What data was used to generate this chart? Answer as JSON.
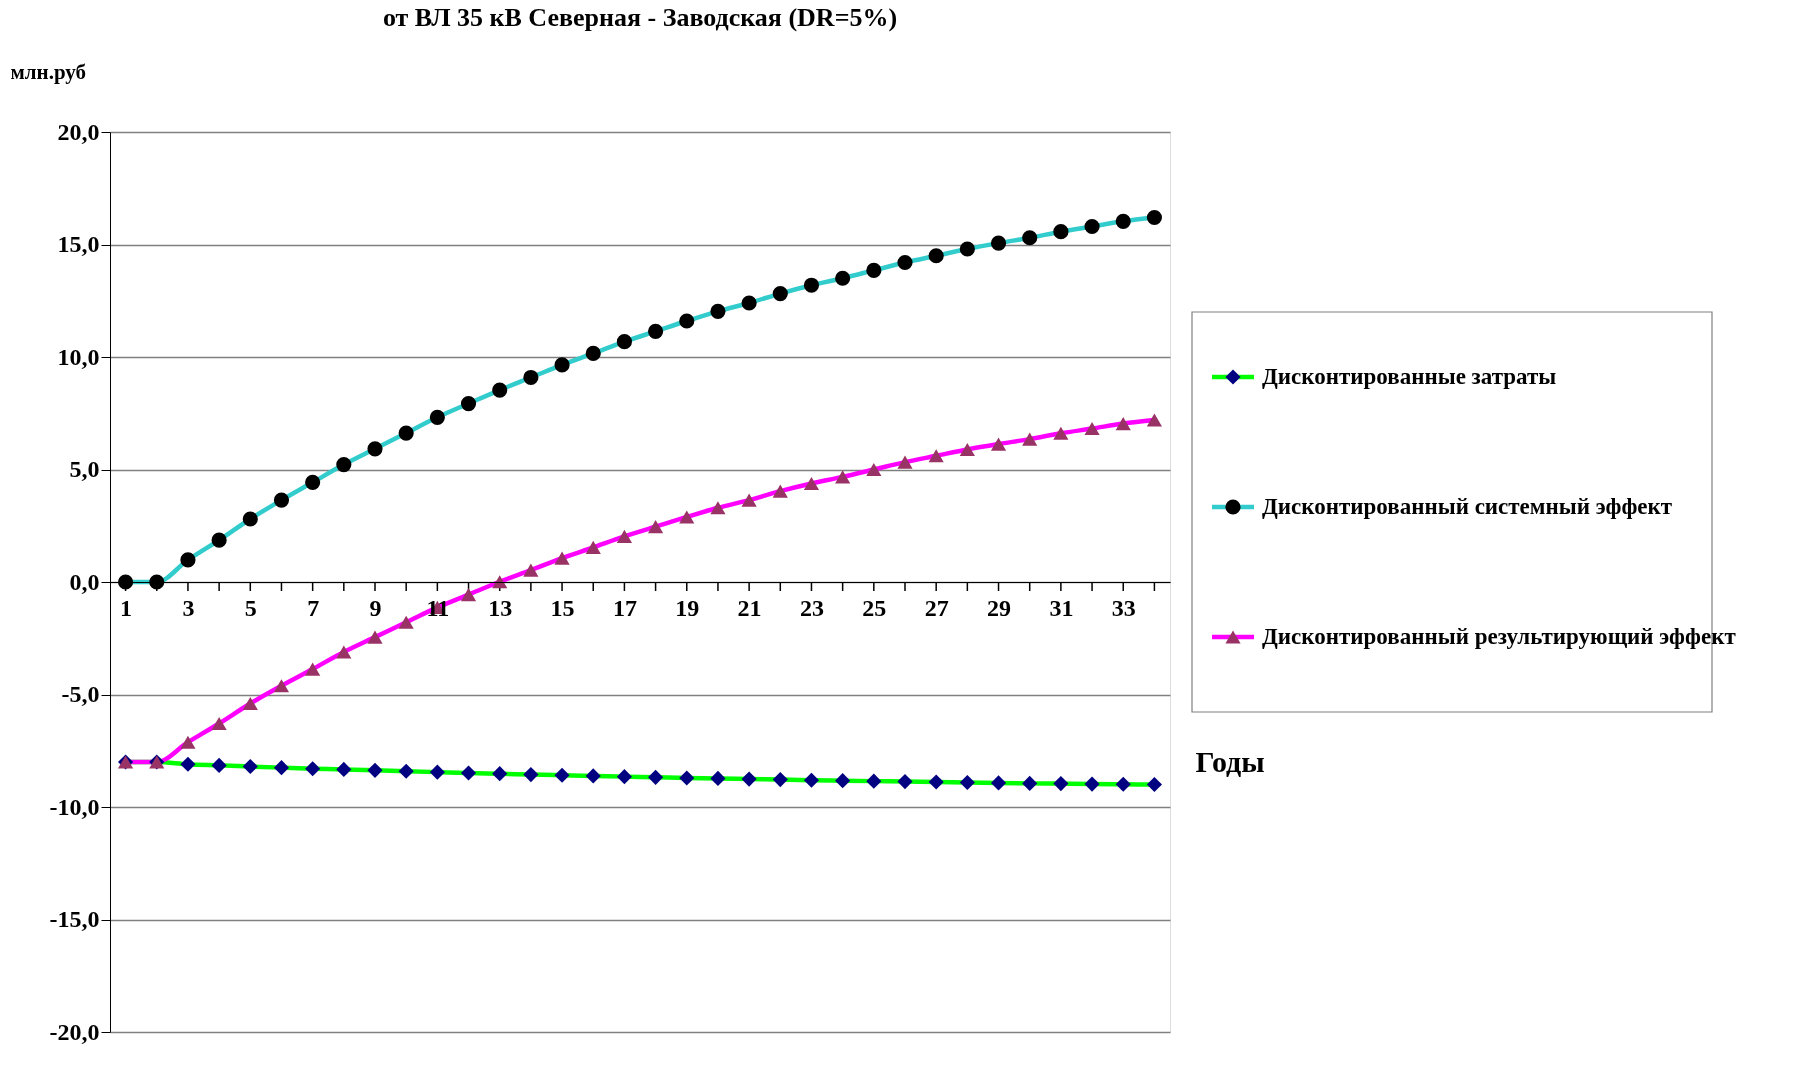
{
  "chart_data": {
    "type": "line",
    "title": "от ВЛ 35 кВ Северная - Заводская (DR=5%)",
    "xlabel": "Годы",
    "ylabel": "млн.руб",
    "x": [
      1,
      2,
      3,
      4,
      5,
      6,
      7,
      8,
      9,
      10,
      11,
      12,
      13,
      14,
      15,
      16,
      17,
      18,
      19,
      20,
      21,
      22,
      23,
      24,
      25,
      26,
      27,
      28,
      29,
      30,
      31,
      32,
      33,
      34
    ],
    "series": [
      {
        "name": "Дисконтированные затраты",
        "color": "#00ff00",
        "marker": "diamond",
        "values": [
          -8.0,
          -8.0,
          -8.1,
          -8.15,
          -8.2,
          -8.25,
          -8.3,
          -8.33,
          -8.37,
          -8.41,
          -8.45,
          -8.49,
          -8.52,
          -8.56,
          -8.59,
          -8.62,
          -8.65,
          -8.68,
          -8.71,
          -8.73,
          -8.76,
          -8.78,
          -8.81,
          -8.83,
          -8.85,
          -8.87,
          -8.89,
          -8.91,
          -8.93,
          -8.95,
          -8.96,
          -8.98,
          -8.99,
          -9.0
        ]
      },
      {
        "name": "Дисконтированный системный эффект",
        "color": "#33cccc",
        "marker": "circle",
        "values": [
          0.0,
          0.0,
          0.98,
          1.86,
          2.8,
          3.64,
          4.43,
          5.22,
          5.92,
          6.62,
          7.32,
          7.93,
          8.53,
          9.09,
          9.65,
          10.16,
          10.68,
          11.14,
          11.6,
          12.03,
          12.4,
          12.82,
          13.19,
          13.5,
          13.85,
          14.2,
          14.5,
          14.8,
          15.06,
          15.3,
          15.57,
          15.8,
          16.03,
          16.2
        ]
      },
      {
        "name": "Дисконтированный результирующий эффект",
        "color": "#ff00ff",
        "marker": "triangle",
        "values": [
          -8.0,
          -8.0,
          -7.12,
          -6.29,
          -5.4,
          -4.61,
          -3.87,
          -3.11,
          -2.45,
          -1.79,
          -1.13,
          -0.56,
          0.01,
          0.53,
          1.06,
          1.54,
          2.03,
          2.46,
          2.89,
          3.3,
          3.64,
          4.04,
          4.38,
          4.67,
          5.0,
          5.33,
          5.61,
          5.89,
          6.13,
          6.35,
          6.61,
          6.82,
          7.04,
          7.2
        ]
      }
    ],
    "xlim": [
      0.5,
      34.5
    ],
    "xticks": [
      1,
      {
        "value": 2,
        "label": null
      },
      3,
      {
        "value": 4,
        "label": null
      },
      5,
      {
        "value": 6,
        "label": null
      },
      7,
      {
        "value": 8,
        "label": null
      },
      9,
      {
        "value": 10,
        "label": null
      },
      11,
      {
        "value": 12,
        "label": null
      },
      13,
      {
        "value": 14,
        "label": null
      },
      15,
      {
        "value": 16,
        "label": null
      },
      17,
      {
        "value": 18,
        "label": null
      },
      19,
      {
        "value": 20,
        "label": null
      },
      21,
      {
        "value": 22,
        "label": null
      },
      23,
      {
        "value": 24,
        "label": null
      },
      25,
      {
        "value": 26,
        "label": null
      },
      27,
      {
        "value": 28,
        "label": null
      },
      29,
      {
        "value": 30,
        "label": null
      },
      31,
      {
        "value": 32,
        "label": null
      },
      33,
      {
        "value": 34,
        "label": null
      }
    ],
    "ylim": [
      -20,
      20
    ],
    "yticks": [
      {
        "value": -20,
        "label": "-20,0"
      },
      {
        "value": -15,
        "label": "-15,0"
      },
      {
        "value": -10,
        "label": "-10,0"
      },
      {
        "value": -5,
        "label": "-5,0"
      },
      {
        "value": 0,
        "label": "0,0"
      },
      {
        "value": 5,
        "label": "5,0"
      },
      {
        "value": 10,
        "label": "10,0"
      },
      {
        "value": 15,
        "label": "15,0"
      },
      {
        "value": 20,
        "label": "20,0"
      }
    ],
    "grid": "y",
    "legend": "right",
    "line_style": "solid"
  }
}
